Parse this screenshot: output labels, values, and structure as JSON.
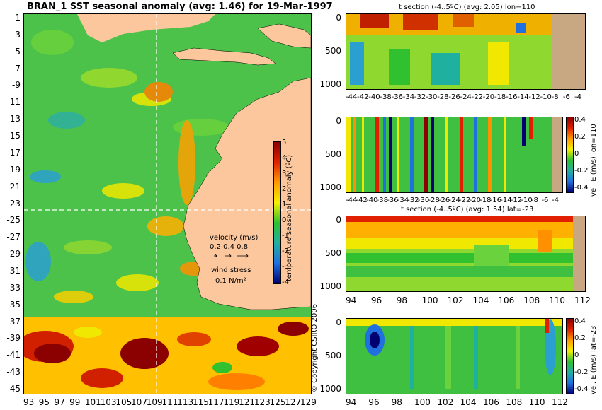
{
  "title": "BRAN_1  SST seasonal anomaly (avg: 1.46) for 19-Mar-1997",
  "copyright": "© Copyright CSIRO 2006",
  "colors": {
    "land": "#fcc79c",
    "land_section": "#c8a882",
    "crosshair": "#ffffff"
  },
  "chart_data": [
    {
      "type": "heatmap",
      "id": "map",
      "y_ticks": [
        "-1",
        "-3",
        "-5",
        "-7",
        "-9",
        "-11",
        "-13",
        "-15",
        "-17",
        "-19",
        "-21",
        "-23",
        "-25",
        "-27",
        "-29",
        "-31",
        "-33",
        "-35",
        "-37",
        "-39",
        "-41",
        "-43",
        "-45"
      ],
      "x_ticks": [
        "93",
        "95",
        "97",
        "99",
        "101",
        "103",
        "105",
        "107",
        "109",
        "111",
        "113",
        "115",
        "117",
        "119",
        "121",
        "123",
        "125",
        "127",
        "129"
      ],
      "crosshair": {
        "lon": 110,
        "lat": -23
      },
      "colorbar": {
        "label": "temperature seasonal anomaly (ºC)",
        "ticks": [
          "5",
          "4",
          "3",
          "2",
          "1",
          "0",
          "-1",
          "-2",
          "-3",
          "-4"
        ],
        "range": [
          -4,
          5
        ]
      },
      "legend": {
        "velocity_label": "velocity (m/s)",
        "velocity_values": "0.2 0.4 0.8",
        "wind_label": "wind stress",
        "wind_value": "0.1 N/m²"
      }
    },
    {
      "type": "heatmap",
      "id": "t-section-lon",
      "title": "t section (-4..5ºC) (avg: 2.05) lon=110",
      "y_ticks": [
        "0",
        "500",
        "1000"
      ],
      "x_ticks": [
        "-44",
        "-42",
        "-40",
        "-38",
        "-36",
        "-34",
        "-32",
        "-30",
        "-28",
        "-26",
        "-24",
        "-22",
        "-20",
        "-18",
        "-16",
        "-14",
        "-12",
        "-10",
        "-8",
        "-6",
        "-4"
      ]
    },
    {
      "type": "heatmap",
      "id": "vel-section-lon",
      "y_ticks": [
        "0",
        "500",
        "1000"
      ],
      "x_ticks": [
        "-44",
        "-42",
        "-40",
        "-38",
        "-36",
        "-34",
        "-32",
        "-30",
        "-28",
        "-26",
        "-24",
        "-22",
        "-20",
        "-18",
        "-16",
        "-14",
        "-12",
        "-10",
        "-8",
        "-6",
        "-4"
      ],
      "colorbar": {
        "label": "vel. E (m/s) lon=110",
        "ticks": [
          "0.4",
          "0.2",
          "0",
          "-0.2",
          "-0.4"
        ],
        "range": [
          -0.4,
          0.4
        ]
      }
    },
    {
      "type": "heatmap",
      "id": "t-section-lat",
      "title": "t section (-4..5ºC) (avg: 1.54) lat=-23",
      "y_ticks": [
        "0",
        "500",
        "1000"
      ],
      "x_ticks": [
        "94",
        "96",
        "98",
        "100",
        "102",
        "104",
        "106",
        "108",
        "110",
        "112"
      ]
    },
    {
      "type": "heatmap",
      "id": "vel-section-lat",
      "y_ticks": [
        "0",
        "500",
        "1000"
      ],
      "x_ticks": [
        "94",
        "96",
        "98",
        "100",
        "102",
        "104",
        "106",
        "108",
        "110",
        "112"
      ],
      "colorbar": {
        "label": "vel. E (m/s) lat=-23",
        "ticks": [
          "0.4",
          "0.2",
          "0",
          "-0.2",
          "-0.4"
        ],
        "range": [
          -0.4,
          0.4
        ]
      }
    }
  ]
}
